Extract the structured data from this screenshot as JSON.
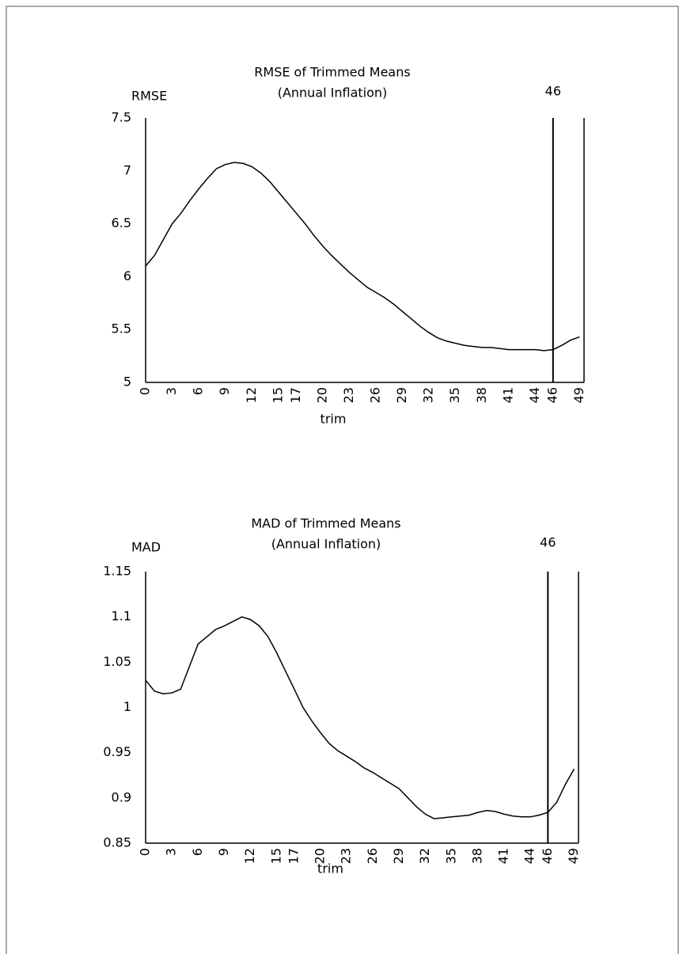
{
  "chart_data": [
    {
      "type": "line",
      "title": "RMSE of Trimmed Means",
      "subtitle": "(Annual Inflation)",
      "ylabel": "RMSE",
      "xlabel": "trim",
      "x": [
        0,
        1,
        2,
        3,
        4,
        5,
        6,
        7,
        8,
        9,
        10,
        11,
        12,
        13,
        14,
        15,
        16,
        17,
        18,
        19,
        20,
        21,
        22,
        23,
        24,
        25,
        26,
        27,
        28,
        29,
        30,
        31,
        32,
        33,
        34,
        35,
        36,
        37,
        38,
        39,
        40,
        41,
        42,
        43,
        44,
        45,
        46,
        47,
        48,
        49
      ],
      "values": [
        6.1,
        6.2,
        6.35,
        6.5,
        6.6,
        6.72,
        6.83,
        6.93,
        7.02,
        7.06,
        7.08,
        7.07,
        7.04,
        6.98,
        6.9,
        6.8,
        6.7,
        6.6,
        6.5,
        6.39,
        6.29,
        6.2,
        6.12,
        6.04,
        5.97,
        5.9,
        5.85,
        5.8,
        5.74,
        5.67,
        5.6,
        5.53,
        5.47,
        5.42,
        5.39,
        5.37,
        5.35,
        5.34,
        5.33,
        5.33,
        5.32,
        5.31,
        5.31,
        5.31,
        5.31,
        5.3,
        5.31,
        5.35,
        5.4,
        5.43
      ],
      "color": "#000000",
      "xlim": [
        0,
        49.5
      ],
      "xticks": [
        0,
        3,
        6,
        9,
        12,
        15,
        17,
        20,
        23,
        26,
        29,
        32,
        35,
        38,
        41,
        44,
        46,
        49
      ],
      "ylim": [
        5,
        7.5
      ],
      "yticks": [
        7.5,
        7,
        6.5,
        6,
        5.5,
        5
      ],
      "vline": 46
    },
    {
      "type": "line",
      "title": "MAD of Trimmed Means",
      "subtitle": "(Annual Inflation)",
      "ylabel": "MAD",
      "xlabel": "trim",
      "x": [
        0,
        1,
        2,
        3,
        4,
        5,
        6,
        7,
        8,
        9,
        10,
        11,
        12,
        13,
        14,
        15,
        16,
        17,
        18,
        19,
        20,
        21,
        22,
        23,
        24,
        25,
        26,
        27,
        28,
        29,
        30,
        31,
        32,
        33,
        34,
        35,
        36,
        37,
        38,
        39,
        40,
        41,
        42,
        43,
        44,
        45,
        46,
        47,
        48,
        49
      ],
      "values": [
        1.03,
        1.018,
        1.015,
        1.016,
        1.02,
        1.045,
        1.07,
        1.078,
        1.086,
        1.09,
        1.095,
        1.1,
        1.097,
        1.09,
        1.078,
        1.06,
        1.04,
        1.02,
        1.0,
        0.985,
        0.972,
        0.96,
        0.952,
        0.946,
        0.94,
        0.933,
        0.928,
        0.922,
        0.916,
        0.91,
        0.9,
        0.89,
        0.882,
        0.877,
        0.878,
        0.879,
        0.88,
        0.881,
        0.884,
        0.886,
        0.885,
        0.882,
        0.88,
        0.879,
        0.879,
        0.881,
        0.884,
        0.895,
        0.915,
        0.932
      ],
      "color": "#000000",
      "xlim": [
        0,
        49.5
      ],
      "xticks": [
        0,
        3,
        6,
        9,
        12,
        15,
        17,
        20,
        23,
        26,
        29,
        32,
        35,
        38,
        41,
        44,
        46,
        49
      ],
      "ylim": [
        0.85,
        1.15
      ],
      "yticks": [
        1.15,
        1.1,
        1.05,
        1,
        0.95,
        0.9,
        0.85
      ],
      "vline": 46
    }
  ]
}
